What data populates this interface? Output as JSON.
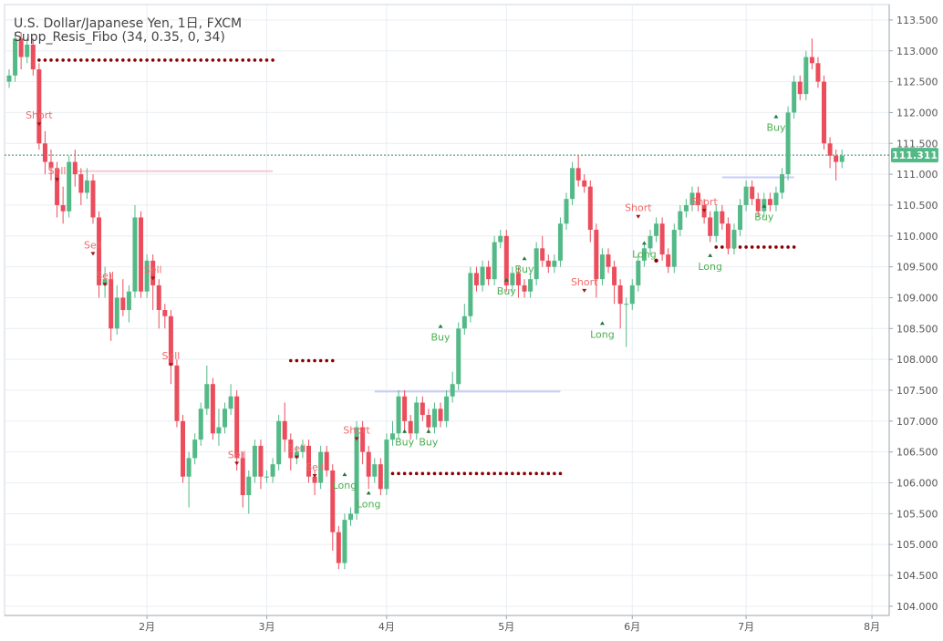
{
  "legend": {
    "title": "U.S. Dollar/Japanese Yen, 1日, FXCM",
    "indicator": "Supp_Resis_Fibo (34, 0.35, 0, 34)"
  },
  "colors": {
    "up": "#53b987",
    "down": "#eb4d5c",
    "support_dots": "#8b0000",
    "signal_sell": "#f06a6a",
    "signal_buy": "#4caf50",
    "price_line": "#2e8b57",
    "price_tag_bg": "#53b987",
    "grid": "#e9eef3",
    "pink_line": "#f8c9cf",
    "blue_line": "#c7cdf5"
  },
  "chart_data": {
    "type": "candlestick",
    "symbol": "U.S. Dollar/Japanese Yen",
    "interval": "1日",
    "source": "FXCM",
    "indicator": "Supp_Resis_Fibo (34, 0.35, 0, 34)",
    "current_price": "111.311",
    "ylim": [
      103.85,
      113.75
    ],
    "y_ticks": [
      "113.500",
      "113.000",
      "112.500",
      "112.000",
      "111.500",
      "111.000",
      "110.500",
      "110.000",
      "109.500",
      "109.000",
      "108.500",
      "108.000",
      "107.500",
      "107.000",
      "106.500",
      "106.000",
      "105.500",
      "105.000",
      "104.500",
      "104.000"
    ],
    "x_ticks": [
      {
        "label": "2月",
        "index": 23
      },
      {
        "label": "3月",
        "index": 43
      },
      {
        "label": "4月",
        "index": 63
      },
      {
        "label": "5月",
        "index": 83
      },
      {
        "label": "6月",
        "index": 104
      },
      {
        "label": "7月",
        "index": 123
      },
      {
        "label": "8月",
        "index": 144
      }
    ],
    "candles": [
      [
        112.5,
        112.6,
        112.4,
        112.7
      ],
      [
        112.6,
        113.2,
        112.5,
        113.3
      ],
      [
        113.2,
        112.9,
        112.7,
        113.3
      ],
      [
        112.9,
        113.1,
        112.8,
        113.2
      ],
      [
        113.1,
        112.7,
        112.6,
        113.2
      ],
      [
        112.7,
        111.5,
        111.4,
        112.8
      ],
      [
        111.5,
        111.2,
        111.0,
        111.7
      ],
      [
        111.2,
        111.1,
        110.9,
        111.4
      ],
      [
        111.1,
        110.5,
        110.3,
        111.2
      ],
      [
        110.5,
        110.4,
        110.2,
        110.8
      ],
      [
        110.4,
        111.2,
        110.3,
        111.3
      ],
      [
        111.2,
        111.0,
        110.8,
        111.4
      ],
      [
        111.0,
        110.7,
        110.5,
        111.1
      ],
      [
        110.7,
        110.9,
        110.6,
        111.1
      ],
      [
        110.9,
        110.3,
        110.2,
        111.0
      ],
      [
        110.3,
        109.2,
        109.0,
        110.4
      ],
      [
        109.2,
        109.3,
        109.0,
        109.5
      ],
      [
        109.3,
        108.5,
        108.3,
        109.4
      ],
      [
        108.5,
        109.0,
        108.4,
        109.2
      ],
      [
        109.0,
        108.8,
        108.7,
        109.3
      ],
      [
        108.8,
        109.1,
        108.6,
        109.2
      ],
      [
        109.1,
        110.3,
        109.0,
        110.5
      ],
      [
        110.3,
        109.1,
        109.0,
        110.4
      ],
      [
        109.1,
        109.6,
        109.0,
        109.7
      ],
      [
        109.6,
        109.2,
        108.8,
        109.7
      ],
      [
        109.2,
        108.8,
        108.5,
        109.3
      ],
      [
        108.8,
        108.7,
        108.5,
        108.9
      ],
      [
        108.7,
        107.9,
        107.6,
        108.8
      ],
      [
        107.9,
        107.0,
        106.9,
        108.0
      ],
      [
        107.0,
        106.1,
        106.0,
        107.1
      ],
      [
        106.1,
        106.4,
        105.6,
        106.5
      ],
      [
        106.4,
        106.7,
        106.3,
        106.8
      ],
      [
        106.7,
        107.2,
        106.6,
        107.3
      ],
      [
        107.2,
        107.6,
        107.1,
        107.9
      ],
      [
        107.6,
        106.8,
        106.7,
        107.7
      ],
      [
        106.8,
        106.9,
        106.6,
        107.2
      ],
      [
        106.9,
        107.2,
        106.8,
        107.3
      ],
      [
        107.2,
        107.4,
        107.1,
        107.6
      ],
      [
        107.4,
        106.4,
        106.2,
        107.5
      ],
      [
        106.4,
        105.8,
        105.6,
        106.5
      ],
      [
        105.8,
        106.1,
        105.5,
        106.2
      ],
      [
        106.1,
        106.6,
        106.0,
        106.7
      ],
      [
        106.6,
        106.1,
        105.9,
        106.7
      ],
      [
        106.1,
        106.1,
        106.0,
        106.2
      ],
      [
        106.1,
        106.3,
        106.0,
        106.4
      ],
      [
        106.3,
        107.0,
        106.2,
        107.1
      ],
      [
        107.0,
        106.7,
        106.5,
        107.3
      ],
      [
        106.7,
        106.4,
        106.2,
        106.8
      ],
      [
        106.4,
        106.5,
        106.3,
        106.6
      ],
      [
        106.5,
        106.6,
        106.4,
        106.7
      ],
      [
        106.6,
        106.1,
        106.0,
        106.7
      ],
      [
        106.1,
        106.0,
        105.8,
        106.2
      ],
      [
        106.0,
        106.5,
        105.9,
        106.6
      ],
      [
        106.5,
        106.2,
        106.1,
        106.6
      ],
      [
        106.2,
        105.2,
        104.9,
        106.3
      ],
      [
        105.2,
        104.7,
        104.6,
        105.3
      ],
      [
        104.7,
        105.4,
        104.6,
        105.5
      ],
      [
        105.4,
        105.5,
        105.3,
        105.6
      ],
      [
        105.5,
        106.9,
        105.4,
        107.0
      ],
      [
        106.9,
        106.5,
        106.3,
        107.0
      ],
      [
        106.5,
        106.1,
        105.9,
        106.6
      ],
      [
        106.1,
        106.3,
        106.0,
        106.4
      ],
      [
        106.3,
        105.9,
        105.8,
        106.4
      ],
      [
        105.9,
        106.7,
        105.8,
        106.8
      ],
      [
        106.7,
        106.8,
        106.6,
        107.0
      ],
      [
        106.8,
        107.4,
        106.7,
        107.5
      ],
      [
        107.4,
        107.0,
        106.8,
        107.5
      ],
      [
        107.0,
        106.8,
        106.7,
        107.1
      ],
      [
        106.8,
        107.3,
        106.7,
        107.4
      ],
      [
        107.3,
        107.1,
        107.0,
        107.4
      ],
      [
        107.1,
        106.9,
        106.8,
        107.2
      ],
      [
        106.9,
        107.2,
        106.8,
        107.3
      ],
      [
        107.2,
        107.0,
        106.9,
        107.3
      ],
      [
        107.0,
        107.4,
        106.9,
        107.5
      ],
      [
        107.4,
        107.6,
        107.3,
        107.8
      ],
      [
        107.6,
        108.5,
        107.5,
        108.6
      ],
      [
        108.5,
        108.7,
        108.4,
        108.9
      ],
      [
        108.7,
        109.4,
        108.6,
        109.5
      ],
      [
        109.4,
        109.2,
        109.1,
        109.5
      ],
      [
        109.2,
        109.5,
        109.1,
        109.6
      ],
      [
        109.5,
        109.3,
        109.2,
        109.6
      ],
      [
        109.3,
        109.9,
        109.2,
        110.0
      ],
      [
        109.9,
        110.0,
        109.8,
        110.1
      ],
      [
        110.0,
        109.2,
        109.1,
        110.1
      ],
      [
        109.2,
        109.4,
        109.1,
        109.5
      ],
      [
        109.4,
        109.2,
        109.0,
        109.5
      ],
      [
        109.2,
        109.1,
        109.0,
        109.3
      ],
      [
        109.1,
        109.3,
        109.0,
        109.4
      ],
      [
        109.3,
        109.8,
        109.2,
        109.9
      ],
      [
        109.8,
        109.6,
        109.5,
        110.0
      ],
      [
        109.6,
        109.5,
        109.4,
        109.7
      ],
      [
        109.5,
        109.6,
        109.4,
        109.7
      ],
      [
        109.6,
        110.2,
        109.5,
        110.3
      ],
      [
        110.2,
        110.6,
        110.1,
        110.7
      ],
      [
        110.6,
        111.1,
        110.5,
        111.2
      ],
      [
        111.1,
        110.9,
        110.8,
        111.3
      ],
      [
        110.9,
        110.8,
        110.7,
        111.0
      ],
      [
        110.8,
        110.1,
        109.9,
        110.9
      ],
      [
        110.1,
        109.3,
        109.0,
        110.2
      ],
      [
        109.3,
        109.7,
        109.2,
        109.8
      ],
      [
        109.7,
        109.5,
        109.4,
        109.8
      ],
      [
        109.5,
        109.2,
        108.9,
        109.6
      ],
      [
        109.2,
        108.9,
        108.5,
        109.3
      ],
      [
        108.9,
        108.9,
        108.2,
        109.0
      ],
      [
        108.9,
        109.2,
        108.8,
        109.3
      ],
      [
        109.2,
        109.6,
        109.1,
        109.7
      ],
      [
        109.6,
        109.8,
        109.5,
        109.9
      ],
      [
        109.8,
        110.0,
        109.7,
        110.1
      ],
      [
        110.0,
        110.2,
        109.9,
        110.3
      ],
      [
        110.2,
        109.7,
        109.6,
        110.3
      ],
      [
        109.7,
        109.5,
        109.4,
        109.8
      ],
      [
        109.5,
        110.1,
        109.4,
        110.2
      ],
      [
        110.1,
        110.4,
        110.0,
        110.5
      ],
      [
        110.4,
        110.5,
        110.3,
        110.6
      ],
      [
        110.5,
        110.7,
        110.4,
        110.8
      ],
      [
        110.7,
        110.5,
        110.4,
        110.8
      ],
      [
        110.5,
        110.3,
        110.2,
        110.6
      ],
      [
        110.3,
        110.0,
        109.9,
        110.4
      ],
      [
        110.0,
        110.4,
        109.9,
        110.5
      ],
      [
        110.4,
        110.2,
        110.1,
        110.5
      ],
      [
        110.2,
        109.8,
        109.7,
        110.3
      ],
      [
        109.8,
        110.1,
        109.7,
        110.2
      ],
      [
        110.1,
        110.5,
        110.0,
        110.6
      ],
      [
        110.5,
        110.8,
        110.4,
        110.9
      ],
      [
        110.8,
        110.6,
        110.5,
        110.9
      ],
      [
        110.6,
        110.4,
        110.3,
        110.7
      ],
      [
        110.4,
        110.6,
        110.3,
        110.7
      ],
      [
        110.6,
        110.5,
        110.4,
        110.7
      ],
      [
        110.5,
        110.7,
        110.4,
        110.8
      ],
      [
        110.7,
        111.0,
        110.6,
        111.1
      ],
      [
        111.0,
        112.0,
        110.9,
        112.1
      ],
      [
        112.0,
        112.5,
        111.9,
        112.6
      ],
      [
        112.5,
        112.3,
        112.2,
        112.6
      ],
      [
        112.3,
        112.9,
        112.2,
        113.0
      ],
      [
        112.9,
        112.8,
        112.7,
        113.2
      ],
      [
        112.8,
        112.5,
        112.4,
        112.9
      ],
      [
        112.5,
        111.5,
        111.4,
        112.6
      ],
      [
        111.5,
        111.3,
        111.1,
        111.6
      ],
      [
        111.3,
        111.2,
        110.9,
        111.4
      ],
      [
        111.2,
        111.3,
        111.1,
        111.4
      ]
    ],
    "dotted_levels": [
      {
        "price": 112.85,
        "start": 5,
        "end": 44
      },
      {
        "price": 107.98,
        "start": 47,
        "end": 54
      },
      {
        "price": 106.15,
        "start": 61,
        "end": 92
      },
      {
        "price": 109.82,
        "start": 118,
        "end": 131
      }
    ],
    "single_dots": [
      {
        "index": 105,
        "price": 109.5
      },
      {
        "index": 108,
        "price": 109.6
      }
    ],
    "level_lines": [
      {
        "price": 111.05,
        "start": 11,
        "end": 44,
        "kind": "pink"
      },
      {
        "price": 107.48,
        "start": 61,
        "end": 92,
        "kind": "blue"
      },
      {
        "price": 110.95,
        "start": 119,
        "end": 131,
        "kind": "blue"
      }
    ],
    "signals": [
      {
        "text": "Short",
        "index": 5,
        "price": 111.9,
        "dir": "down"
      },
      {
        "text": "Sell",
        "index": 8,
        "price": 111.0,
        "dir": "down"
      },
      {
        "text": "Sell",
        "index": 14,
        "price": 109.8,
        "dir": "down"
      },
      {
        "text": "Sell",
        "index": 16,
        "price": 109.3,
        "dir": "down"
      },
      {
        "text": "Sell",
        "index": 24,
        "price": 109.4,
        "dir": "down"
      },
      {
        "text": "Sell",
        "index": 27,
        "price": 108.0,
        "dir": "down"
      },
      {
        "text": "Sell",
        "index": 38,
        "price": 106.4,
        "dir": "down"
      },
      {
        "text": "Sell",
        "index": 48,
        "price": 106.5,
        "dir": "down"
      },
      {
        "text": "Sell",
        "index": 51,
        "price": 106.2,
        "dir": "down"
      },
      {
        "text": "Short",
        "index": 58,
        "price": 106.8,
        "dir": "down"
      },
      {
        "text": "Long",
        "index": 56,
        "price": 106.05,
        "dir": "up"
      },
      {
        "text": "Long",
        "index": 60,
        "price": 105.75,
        "dir": "up"
      },
      {
        "text": "Buy",
        "index": 66,
        "price": 106.75,
        "dir": "up"
      },
      {
        "text": "Buy",
        "index": 70,
        "price": 106.75,
        "dir": "up"
      },
      {
        "text": "Buy",
        "index": 72,
        "price": 108.45,
        "dir": "up"
      },
      {
        "text": "Buy",
        "index": 83,
        "price": 109.2,
        "dir": "up"
      },
      {
        "text": "Buy",
        "index": 86,
        "price": 109.55,
        "dir": "up"
      },
      {
        "text": "Short",
        "index": 96,
        "price": 109.2,
        "dir": "down"
      },
      {
        "text": "Long",
        "index": 99,
        "price": 108.5,
        "dir": "up"
      },
      {
        "text": "Short",
        "index": 105,
        "price": 110.4,
        "dir": "down"
      },
      {
        "text": "Long",
        "index": 106,
        "price": 109.8,
        "dir": "up"
      },
      {
        "text": "Short",
        "index": 116,
        "price": 110.5,
        "dir": "down"
      },
      {
        "text": "Long",
        "index": 117,
        "price": 109.6,
        "dir": "up"
      },
      {
        "text": "Buy",
        "index": 126,
        "price": 110.4,
        "dir": "up"
      },
      {
        "text": "Buy",
        "index": 128,
        "price": 111.85,
        "dir": "up"
      }
    ]
  }
}
